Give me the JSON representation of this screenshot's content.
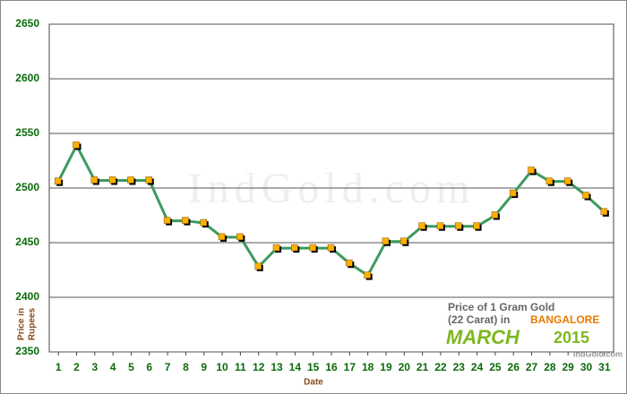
{
  "chart_data": {
    "type": "line",
    "x_label": "Date",
    "y_label_lines": [
      "Price in",
      "Rupees"
    ],
    "watermark": "IndGold.com",
    "logo": {
      "line1": "Price of 1 Gram Gold",
      "line2": "(22 Carat) in",
      "city": "BANGALORE",
      "month": "MARCH",
      "year": "2015",
      "site": "IndGold.com"
    },
    "x": [
      1,
      2,
      3,
      4,
      5,
      6,
      7,
      8,
      9,
      10,
      11,
      12,
      13,
      14,
      15,
      16,
      17,
      18,
      19,
      20,
      21,
      22,
      23,
      24,
      25,
      26,
      27,
      28,
      29,
      30,
      31
    ],
    "series": [
      {
        "color": "#3d9a5c",
        "marker_color": "#ffb000",
        "values": [
          2506,
          2539,
          2507,
          2507,
          2507,
          2507,
          2470,
          2470,
          2468,
          2455,
          2455,
          2428,
          2445,
          2445,
          2445,
          2445,
          2431,
          2420,
          2451,
          2451,
          2465,
          2465,
          2465,
          2465,
          2475,
          2495,
          2516,
          2506,
          2506,
          2493,
          2478
        ]
      }
    ],
    "xlim": [
      0.5,
      31.5
    ],
    "xticks": [
      1,
      2,
      3,
      4,
      5,
      6,
      7,
      8,
      9,
      10,
      11,
      12,
      13,
      14,
      15,
      16,
      17,
      18,
      19,
      20,
      21,
      22,
      23,
      24,
      25,
      26,
      27,
      28,
      29,
      30,
      31
    ],
    "ylim": [
      2350,
      2650
    ],
    "yticks": [
      2350,
      2400,
      2450,
      2500,
      2550,
      2600,
      2650
    ],
    "grid": true
  }
}
